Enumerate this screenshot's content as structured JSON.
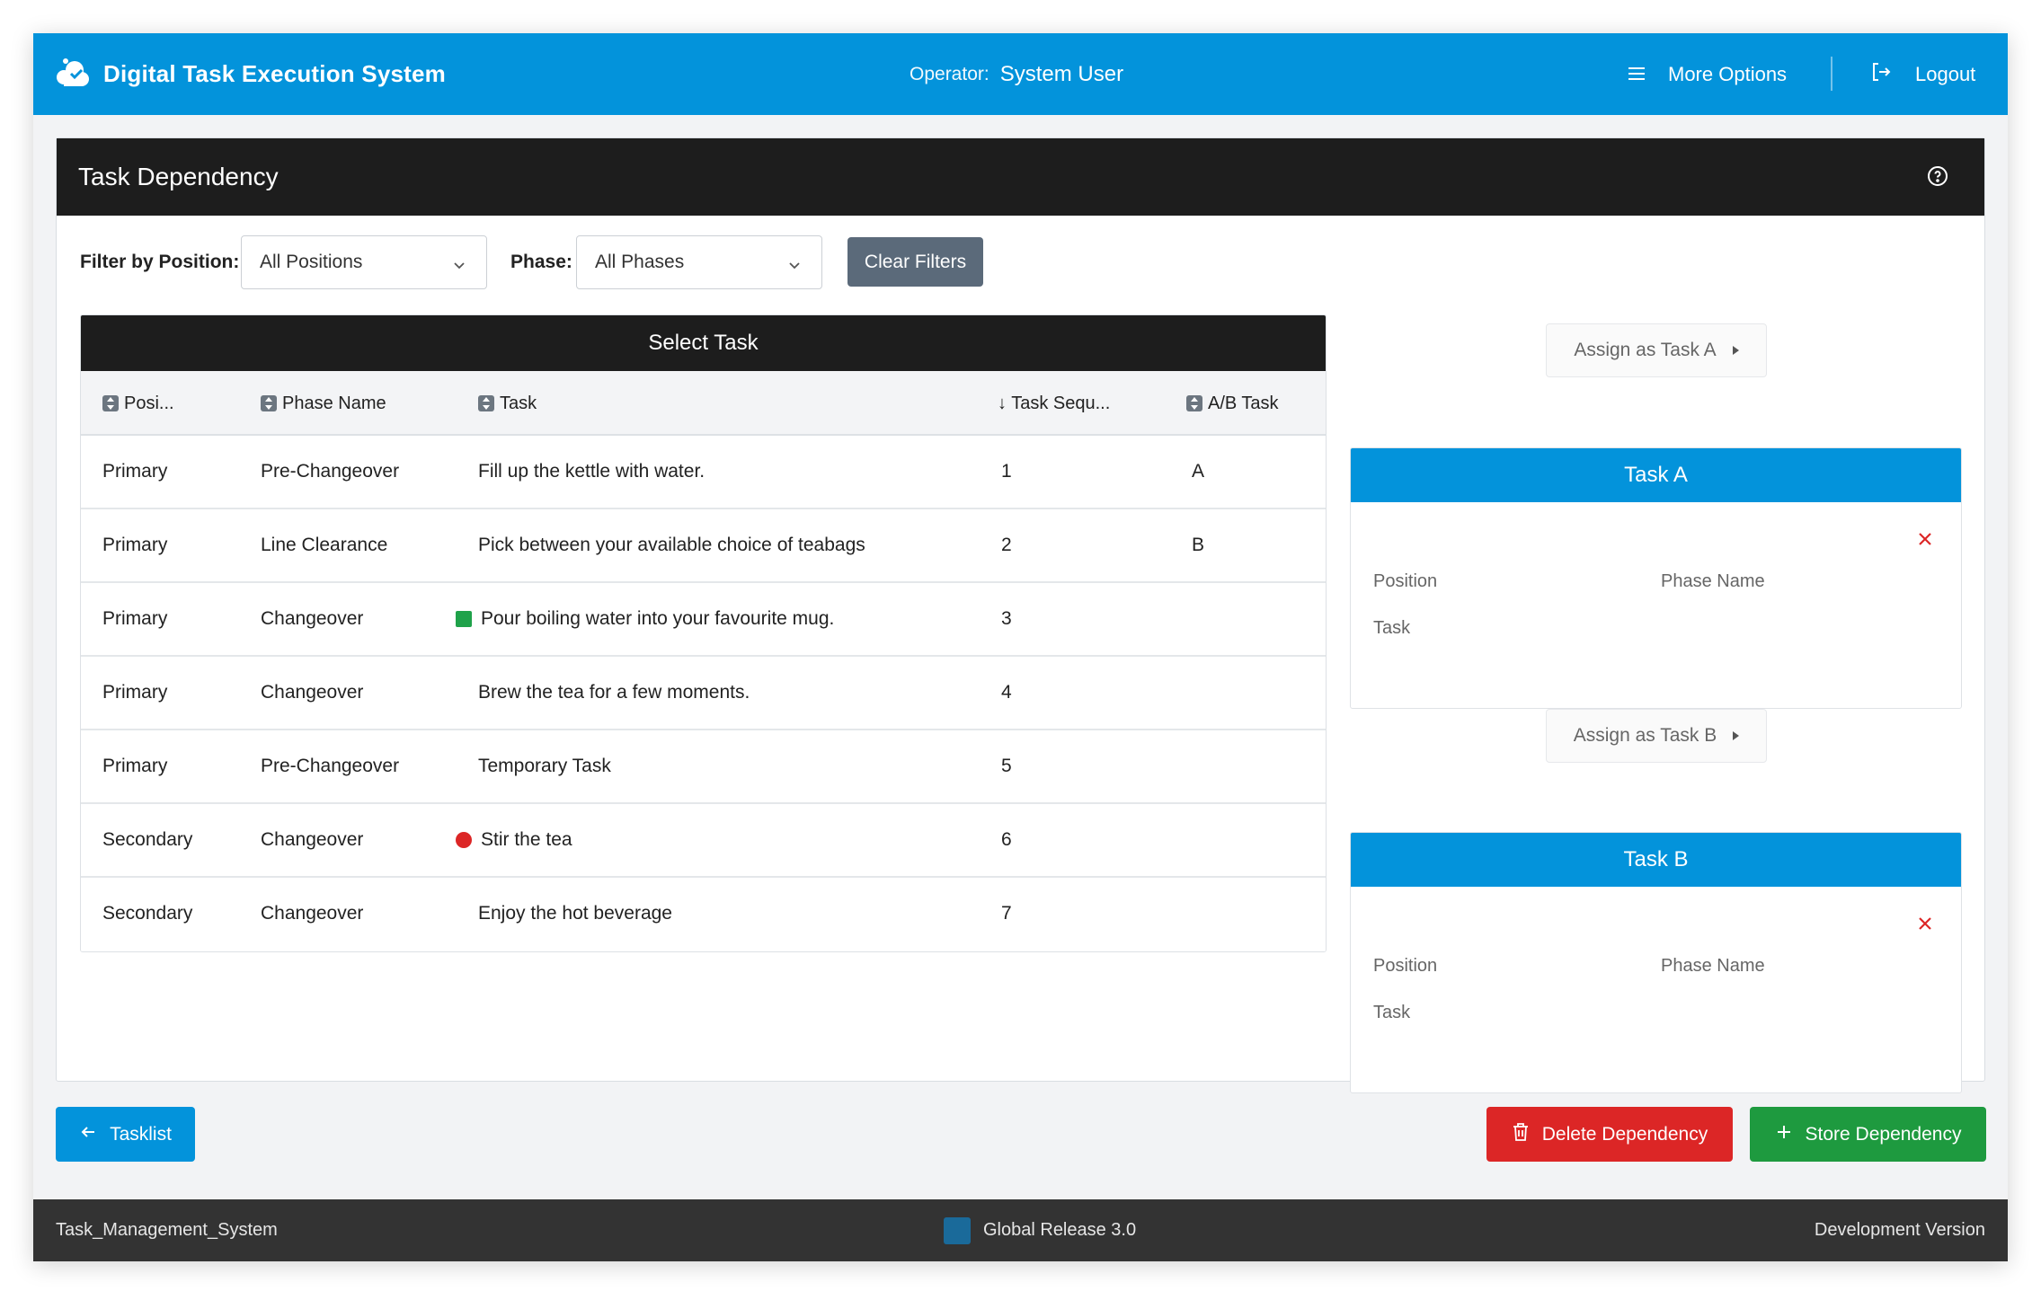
{
  "app": {
    "title": "Digital Task Execution System",
    "operator_label": "Operator:",
    "operator_name": "System User",
    "more_options": "More Options",
    "logout": "Logout"
  },
  "card": {
    "title": "Task Dependency"
  },
  "filters": {
    "position_label": "Filter by Position:",
    "position_value": "All Positions",
    "phase_label": "Phase:",
    "phase_value": "All Phases",
    "clear": "Clear Filters"
  },
  "table": {
    "title": "Select Task",
    "columns": [
      "Posi...",
      "Phase Name",
      "Task",
      "↓ Task Sequ...",
      "A/B Task"
    ],
    "rows": [
      {
        "position": "Primary",
        "phase": "Pre-Changeover",
        "task": "Fill up the kettle with water.",
        "seq": "1",
        "ab": "A",
        "marker": ""
      },
      {
        "position": "Primary",
        "phase": "Line Clearance",
        "task": "Pick between your available choice of teabags",
        "seq": "2",
        "ab": "B",
        "marker": ""
      },
      {
        "position": "Primary",
        "phase": "Changeover",
        "task": "Pour boiling water into your favourite mug.",
        "seq": "3",
        "ab": "",
        "marker": "green-square"
      },
      {
        "position": "Primary",
        "phase": "Changeover",
        "task": "Brew the tea for a few moments.",
        "seq": "4",
        "ab": "",
        "marker": ""
      },
      {
        "position": "Primary",
        "phase": "Pre-Changeover",
        "task": "Temporary Task",
        "seq": "5",
        "ab": "",
        "marker": ""
      },
      {
        "position": "Secondary",
        "phase": "Changeover",
        "task": "Stir the tea",
        "seq": "6",
        "ab": "",
        "marker": "red-dot"
      },
      {
        "position": "Secondary",
        "phase": "Changeover",
        "task": "Enjoy the hot beverage",
        "seq": "7",
        "ab": "",
        "marker": ""
      }
    ]
  },
  "task_a": {
    "assign": "Assign as Task A",
    "title": "Task A",
    "position_label": "Position",
    "phase_label": "Phase Name",
    "task_label": "Task"
  },
  "task_b": {
    "assign": "Assign as Task B",
    "title": "Task B",
    "position_label": "Position",
    "phase_label": "Phase Name",
    "task_label": "Task"
  },
  "actions": {
    "tasklist": "Tasklist",
    "delete": "Delete Dependency",
    "store": "Store Dependency"
  },
  "footer": {
    "left": "Task_Management_System",
    "middle": "Global Release 3.0",
    "right": "Development Version"
  },
  "colors": {
    "primary": "#0393db",
    "dark": "#1d1d1d",
    "danger": "#dc2626",
    "success": "#1e9a3f",
    "marker_green": "#1fa24a",
    "marker_red": "#dc2626"
  }
}
